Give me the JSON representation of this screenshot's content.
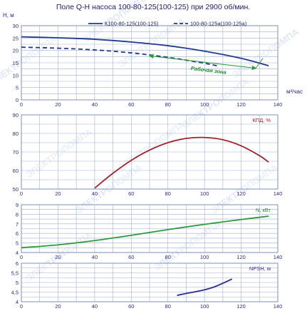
{
  "title": "Поле Q-H насоса 100-80-125(100-125) при 2900 об/мин.",
  "watermark_text": "ЭЛЕКТРОПОМПА",
  "colors": {
    "curve_main": "#1f3a8f",
    "curve_trim": "#1f3a8f",
    "efficiency": "#a0252b",
    "power": "#2e9a3a",
    "npsh": "#2b2f8a",
    "work_zone": "#2e9a3a"
  },
  "chart_data": [
    {
      "type": "line",
      "panel": "qh",
      "ylabel": "H, м",
      "xlabel": "м³/час",
      "xlim": [
        0,
        140
      ],
      "ylim": [
        0,
        30
      ],
      "x_ticks": [
        "0",
        "20",
        "40",
        "60",
        "80",
        "100",
        "120",
        "140"
      ],
      "y_ticks": [
        "0",
        "5",
        "10",
        "15",
        "20",
        "25",
        "30"
      ],
      "grid": true,
      "legend": "top-right",
      "series": [
        {
          "name": "К100-80-125(100-125)",
          "style": "solid",
          "x": [
            0,
            20,
            40,
            60,
            80,
            100,
            120,
            135
          ],
          "y": [
            25.5,
            25.1,
            24.5,
            23.4,
            21.9,
            19.7,
            16.8,
            13.8
          ]
        },
        {
          "name": "100-80-125а(100-125а)",
          "style": "dashed",
          "x": [
            0,
            20,
            40,
            60,
            80,
            100,
            108
          ],
          "y": [
            21.3,
            20.9,
            20.2,
            19.0,
            17.2,
            14.8,
            13.6
          ]
        }
      ],
      "annotation": {
        "text": "Рабочая зона",
        "x_range": [
          70,
          128
        ],
        "y_range": [
          17.8,
          12.8
        ]
      }
    },
    {
      "type": "line",
      "panel": "efficiency",
      "ylabel": "КПД, %",
      "xlim": [
        0,
        140
      ],
      "ylim": [
        50,
        90
      ],
      "x_ticks": [
        "0",
        "20",
        "40",
        "60",
        "80",
        "100",
        "120",
        "140"
      ],
      "y_ticks": [
        "50",
        "60",
        "70",
        "80",
        "90"
      ],
      "grid": true,
      "series": [
        {
          "name": "КПД",
          "x": [
            40,
            50,
            60,
            70,
            80,
            90,
            100,
            110,
            120,
            130,
            135
          ],
          "y": [
            50.5,
            58.5,
            65.5,
            71,
            75,
            77.3,
            77.8,
            76.6,
            73.3,
            68,
            64.5
          ]
        }
      ]
    },
    {
      "type": "line",
      "panel": "power",
      "ylabel": "N, кВт",
      "xlim": [
        0,
        140
      ],
      "ylim": [
        4,
        9
      ],
      "x_ticks": [
        "0",
        "20",
        "40",
        "60",
        "80",
        "100",
        "120",
        "140"
      ],
      "y_ticks": [
        "4",
        "5",
        "6",
        "7",
        "8",
        "9"
      ],
      "grid": true,
      "series": [
        {
          "name": "N",
          "x": [
            0,
            20,
            40,
            60,
            80,
            100,
            120,
            135
          ],
          "y": [
            4.5,
            4.8,
            5.25,
            5.8,
            6.4,
            6.95,
            7.45,
            7.8
          ]
        }
      ]
    },
    {
      "type": "line",
      "panel": "npsh",
      "ylabel": "NPSH, м",
      "xlim": [
        0,
        140
      ],
      "ylim": [
        4,
        6
      ],
      "x_ticks": [
        "0",
        "20",
        "40",
        "60",
        "80",
        "100",
        "120",
        "140"
      ],
      "y_ticks": [
        "4",
        "4,5",
        "5",
        "5,5",
        "6"
      ],
      "grid": true,
      "series": [
        {
          "name": "NPSH",
          "x": [
            85,
            90,
            95,
            100,
            105,
            110,
            115
          ],
          "y": [
            4.33,
            4.43,
            4.52,
            4.62,
            4.76,
            4.96,
            5.18
          ]
        }
      ]
    }
  ]
}
